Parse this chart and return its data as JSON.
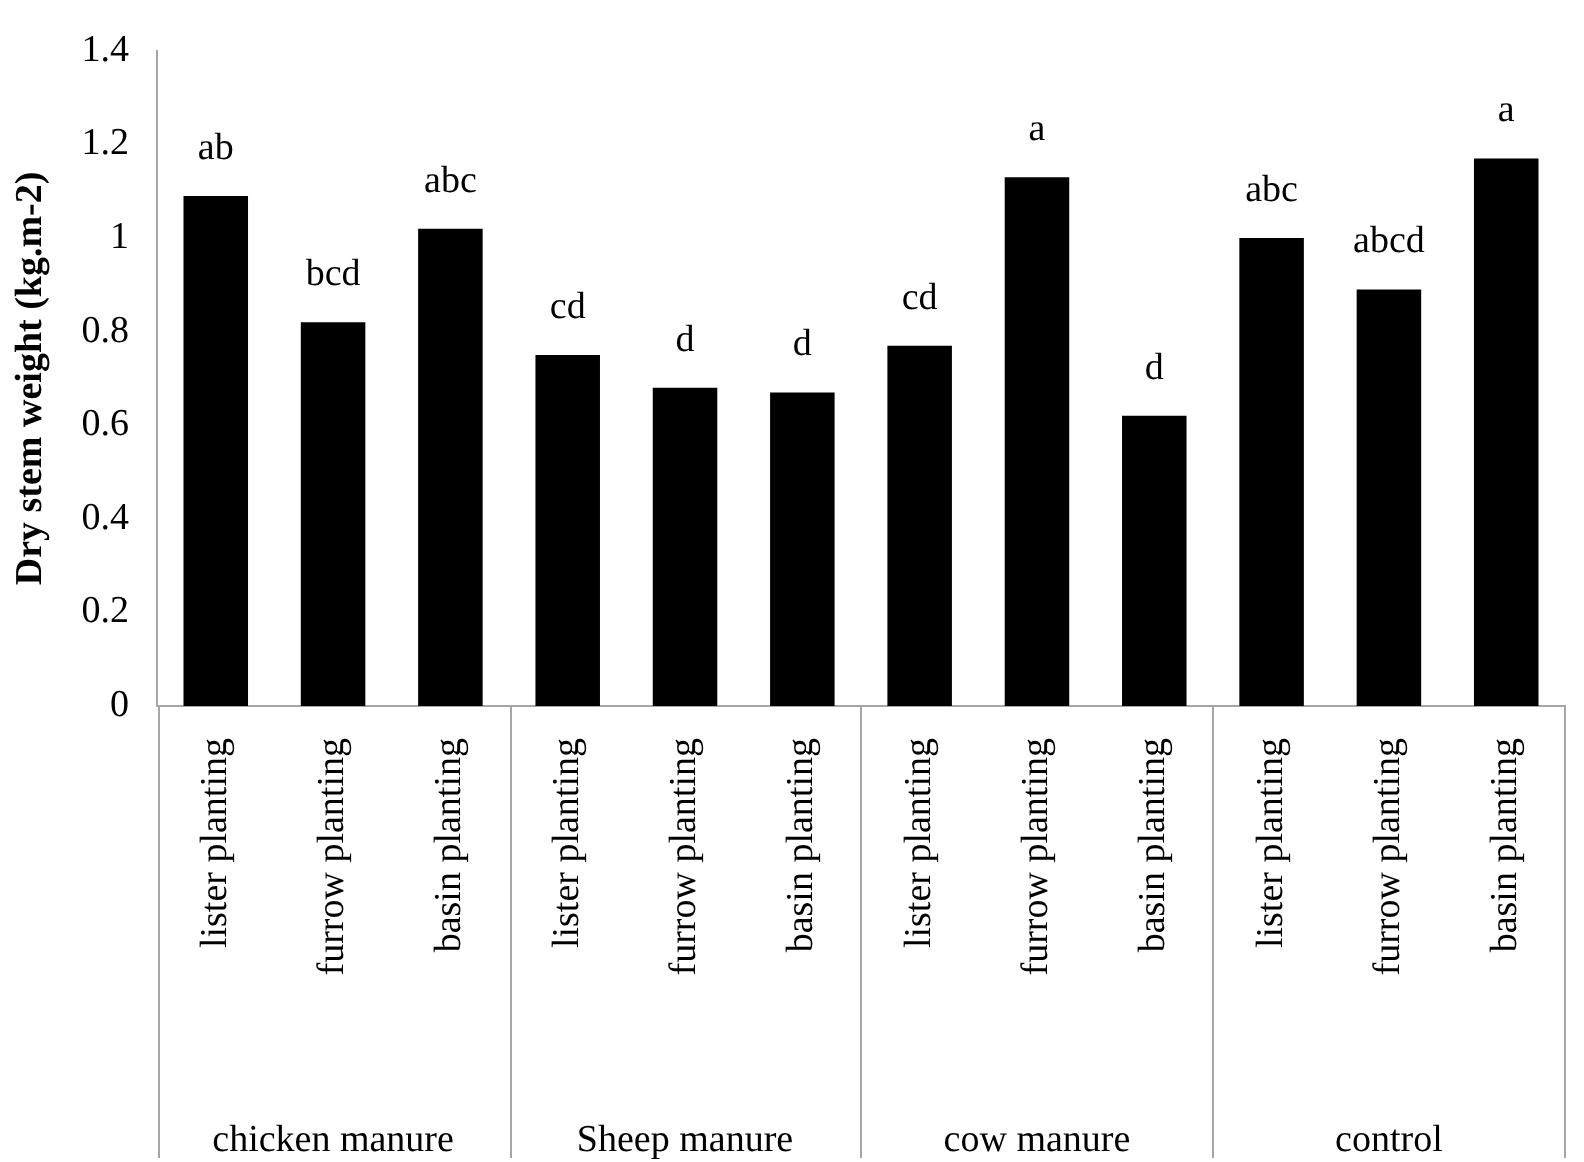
{
  "chart_data": {
    "type": "bar",
    "ylabel": "Dry stem weight (kg.m-2)",
    "categories": [
      "lister planting",
      "furrow planting",
      "basin planting",
      "lister planting",
      "furrow planting",
      "basin planting",
      "lister planting",
      "furrow planting",
      "basin planting",
      "lister planting",
      "furrow planting",
      "basin planting"
    ],
    "values": [
      1.09,
      0.82,
      1.02,
      0.75,
      0.68,
      0.67,
      0.77,
      1.13,
      0.62,
      1.0,
      0.89,
      1.17
    ],
    "value_labels": [
      "ab",
      "bcd",
      "abc",
      "cd",
      "d",
      "d",
      "cd",
      "a",
      "d",
      "abc",
      "abcd",
      "a"
    ],
    "color": "#000000",
    "ylim": [
      0,
      1.4
    ],
    "yticks": [
      0,
      0.2,
      0.4,
      0.6,
      0.8,
      1,
      1.2,
      1.4
    ],
    "annotations": [
      "chicken manure",
      "Sheep manure",
      "cow manure",
      "control"
    ],
    "grid": false,
    "legend": false
  }
}
